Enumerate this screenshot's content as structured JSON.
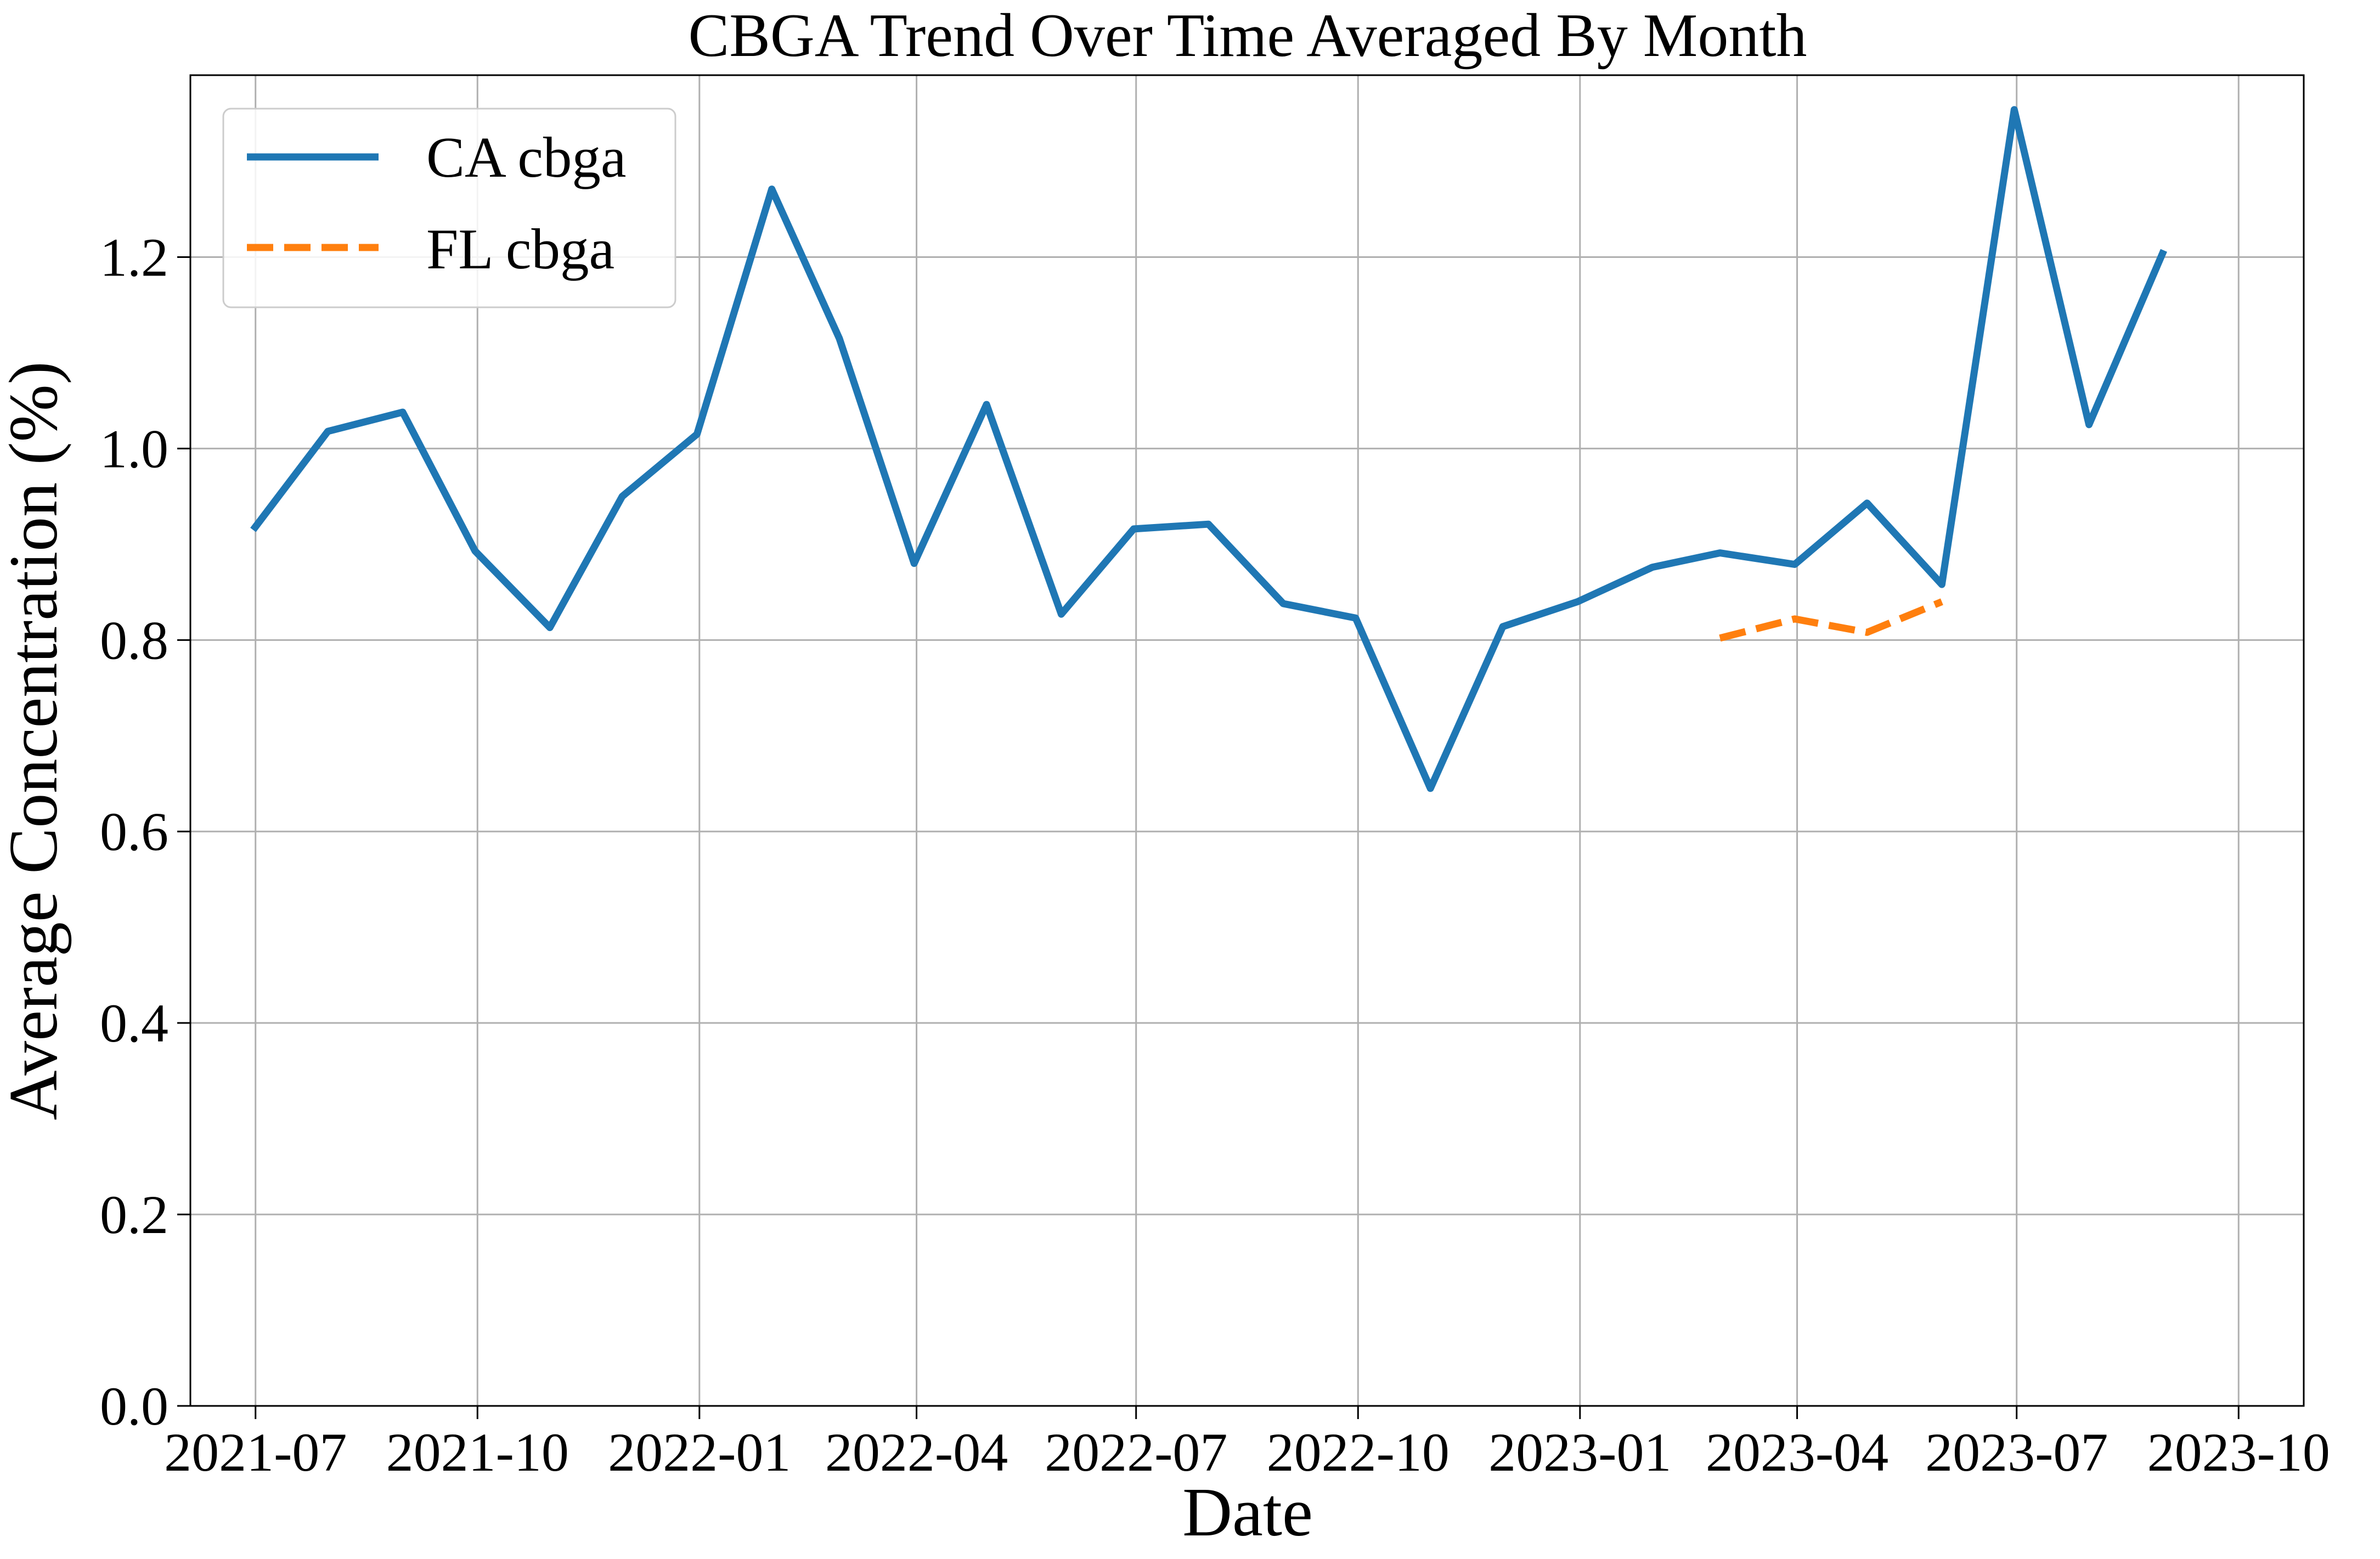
{
  "chart_data": {
    "type": "line",
    "title": "CBGA Trend Over Time Averaged By Month",
    "xlabel": "Date",
    "ylabel": "Average Concentration (%)",
    "x_ticks": [
      "2021-07",
      "2021-10",
      "2022-01",
      "2022-04",
      "2022-07",
      "2022-10",
      "2023-01",
      "2023-04",
      "2023-07",
      "2023-10"
    ],
    "y_ticks": [
      "0.0",
      "0.2",
      "0.4",
      "0.6",
      "0.8",
      "1.0",
      "1.2"
    ],
    "ylim": [
      0,
      1.39
    ],
    "xlim": [
      "2021-06-04",
      "2023-10-28"
    ],
    "grid": true,
    "legend_position": "top-left",
    "series": [
      {
        "name": "CA cbga",
        "color": "#1f77b4",
        "style": "solid",
        "points": [
          {
            "x": "2021-06-30",
            "y": 0.915
          },
          {
            "x": "2021-07-31",
            "y": 1.018
          },
          {
            "x": "2021-08-31",
            "y": 1.038
          },
          {
            "x": "2021-09-30",
            "y": 0.893
          },
          {
            "x": "2021-10-31",
            "y": 0.813
          },
          {
            "x": "2021-11-30",
            "y": 0.95
          },
          {
            "x": "2021-12-31",
            "y": 1.015
          },
          {
            "x": "2022-01-31",
            "y": 1.271
          },
          {
            "x": "2022-02-28",
            "y": 1.115
          },
          {
            "x": "2022-03-31",
            "y": 0.88
          },
          {
            "x": "2022-04-30",
            "y": 1.046
          },
          {
            "x": "2022-05-31",
            "y": 0.827
          },
          {
            "x": "2022-06-30",
            "y": 0.916
          },
          {
            "x": "2022-07-31",
            "y": 0.921
          },
          {
            "x": "2022-08-31",
            "y": 0.838
          },
          {
            "x": "2022-09-30",
            "y": 0.823
          },
          {
            "x": "2022-10-31",
            "y": 0.645
          },
          {
            "x": "2022-11-30",
            "y": 0.814
          },
          {
            "x": "2022-12-31",
            "y": 0.84
          },
          {
            "x": "2023-01-31",
            "y": 0.876
          },
          {
            "x": "2023-02-28",
            "y": 0.891
          },
          {
            "x": "2023-03-31",
            "y": 0.879
          },
          {
            "x": "2023-04-30",
            "y": 0.943
          },
          {
            "x": "2023-05-31",
            "y": 0.858
          },
          {
            "x": "2023-06-30",
            "y": 1.354
          },
          {
            "x": "2023-07-31",
            "y": 1.025
          },
          {
            "x": "2023-08-31",
            "y": 1.207
          }
        ]
      },
      {
        "name": "FL cbga",
        "color": "#ff7f0e",
        "style": "dashed",
        "points": [
          {
            "x": "2023-02-28",
            "y": 0.802
          },
          {
            "x": "2023-03-31",
            "y": 0.822
          },
          {
            "x": "2023-04-30",
            "y": 0.808
          },
          {
            "x": "2023-05-31",
            "y": 0.84
          }
        ]
      }
    ]
  }
}
